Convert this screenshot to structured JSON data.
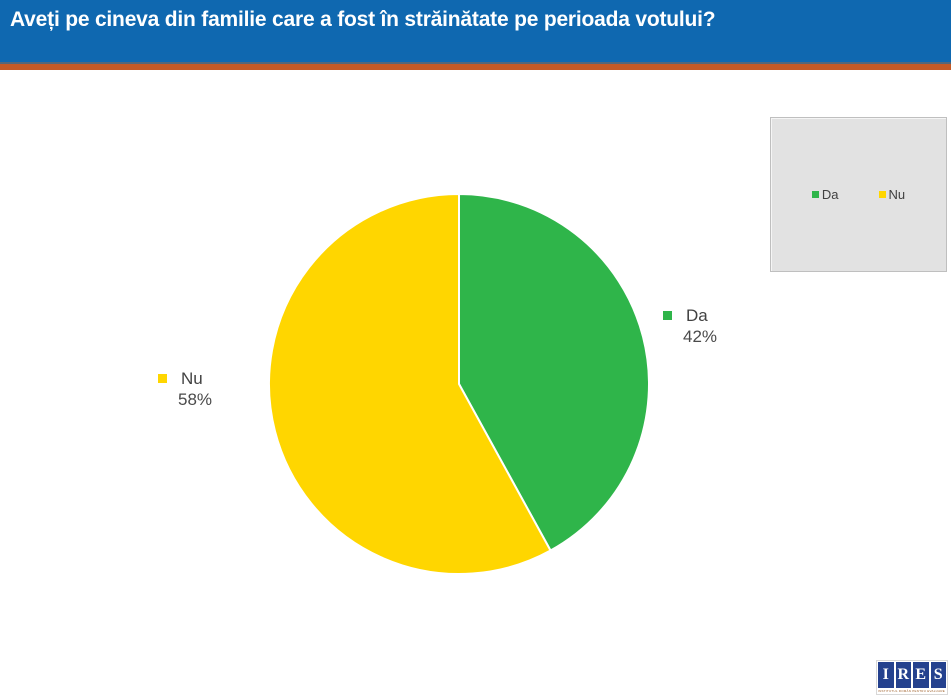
{
  "header": {
    "title": "Aveți pe cineva din familie care a fost în străinătate pe perioada votului?"
  },
  "chart_data": {
    "type": "pie",
    "title": "Aveți pe cineva din familie care a fost în străinătate pe perioada votului?",
    "slices": [
      {
        "label": "Da",
        "value": 42,
        "percent_label": "42%",
        "color": "#2FB54A"
      },
      {
        "label": "Nu",
        "value": 58,
        "percent_label": "58%",
        "color": "#FFD600"
      }
    ],
    "start_angle_deg": 0,
    "direction": "clockwise",
    "legend_position": "top-right",
    "data_labels": "outside"
  },
  "colors": {
    "header_bg": "#0F68B0",
    "accent_bar": "#C45A26",
    "legend_bg": "#E2E2E2",
    "label_text": "#404040",
    "divider_stroke": "#FFFFFF",
    "logo_navy": "#24418E"
  },
  "logo": {
    "letters": [
      "I",
      "R",
      "E",
      "S"
    ],
    "tagline": "INSTITUTUL ROMÂN PENTRU EVALUARE ȘI STRATEGIE"
  }
}
